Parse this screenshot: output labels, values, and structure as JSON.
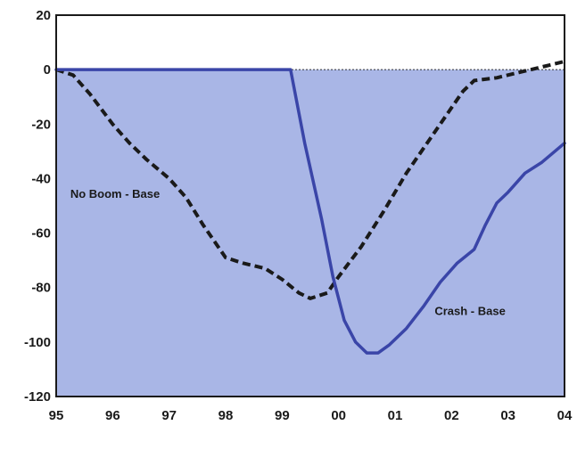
{
  "chart_data": {
    "type": "line",
    "title": "",
    "xlabel": "",
    "ylabel": "",
    "x_ticks": [
      "95",
      "96",
      "97",
      "98",
      "99",
      "00",
      "01",
      "02",
      "03",
      "04"
    ],
    "y_ticks": [
      20,
      0,
      -20,
      -40,
      -60,
      -80,
      -100,
      -120
    ],
    "xlim": [
      1995,
      2004
    ],
    "ylim": [
      -120,
      20
    ],
    "shaded_region_below": 0,
    "grid": false,
    "colors": {
      "fill": "#a9b6e6",
      "crash_line": "#3a45a8",
      "noboom_line": "#1a1a1a",
      "zero_line": "#333333",
      "frame": "#1a1a1a"
    },
    "series": [
      {
        "name": "No Boom - Base",
        "style": "dashed",
        "points": [
          [
            1995.0,
            0
          ],
          [
            1995.3,
            -2
          ],
          [
            1995.6,
            -9
          ],
          [
            1996.0,
            -20
          ],
          [
            1996.3,
            -27
          ],
          [
            1996.6,
            -33
          ],
          [
            1997.0,
            -40
          ],
          [
            1997.3,
            -47
          ],
          [
            1997.6,
            -57
          ],
          [
            1998.0,
            -69
          ],
          [
            1998.3,
            -71
          ],
          [
            1998.7,
            -73
          ],
          [
            1999.0,
            -77
          ],
          [
            1999.3,
            -82
          ],
          [
            1999.5,
            -84
          ],
          [
            1999.8,
            -82
          ],
          [
            2000.0,
            -76
          ],
          [
            2000.4,
            -65
          ],
          [
            2000.8,
            -52
          ],
          [
            2001.2,
            -38
          ],
          [
            2001.6,
            -26
          ],
          [
            2002.0,
            -14
          ],
          [
            2002.2,
            -8
          ],
          [
            2002.4,
            -4
          ],
          [
            2002.8,
            -3
          ],
          [
            2003.2,
            -1
          ],
          [
            2003.6,
            1
          ],
          [
            2004.0,
            3
          ]
        ]
      },
      {
        "name": "Crash - Base",
        "style": "solid",
        "points": [
          [
            1995.0,
            0
          ],
          [
            1999.15,
            0
          ],
          [
            1999.4,
            -27
          ],
          [
            1999.7,
            -55
          ],
          [
            1999.9,
            -76
          ],
          [
            2000.1,
            -92
          ],
          [
            2000.3,
            -100
          ],
          [
            2000.5,
            -104
          ],
          [
            2000.7,
            -104
          ],
          [
            2000.9,
            -101
          ],
          [
            2001.2,
            -95
          ],
          [
            2001.5,
            -87
          ],
          [
            2001.8,
            -78
          ],
          [
            2002.1,
            -71
          ],
          [
            2002.4,
            -66
          ],
          [
            2002.6,
            -57
          ],
          [
            2002.8,
            -49
          ],
          [
            2003.0,
            -45
          ],
          [
            2003.3,
            -38
          ],
          [
            2003.6,
            -34
          ],
          [
            2004.0,
            -27
          ]
        ]
      }
    ],
    "annotations": [
      {
        "text": "No Boom - Base",
        "x": 1995.25,
        "y": -47
      },
      {
        "text": "Crash - Base",
        "x": 2001.7,
        "y": -90
      }
    ]
  }
}
